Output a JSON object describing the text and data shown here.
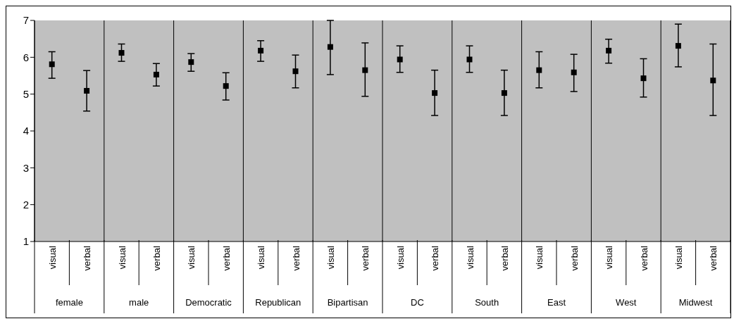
{
  "chart_data": {
    "type": "scatter",
    "categories": [
      "female",
      "male",
      "Democratic",
      "Republican",
      "Bipartisan",
      "DC",
      "South",
      "East",
      "West",
      "Midwest"
    ],
    "series": [
      {
        "name": "visual",
        "color": "#000000",
        "values": [
          5.81,
          6.12,
          5.87,
          6.18,
          6.28,
          5.94,
          5.94,
          5.65,
          6.18,
          6.31
        ],
        "errors": [
          [
            5.43,
            6.15
          ],
          [
            5.89,
            6.36
          ],
          [
            5.62,
            6.1
          ],
          [
            5.89,
            6.45
          ],
          [
            5.53,
            7.0
          ],
          [
            5.59,
            6.31
          ],
          [
            5.59,
            6.31
          ],
          [
            5.17,
            6.15
          ],
          [
            5.84,
            6.49
          ],
          [
            5.74,
            6.9
          ]
        ]
      },
      {
        "name": "verbal",
        "color": "#000000",
        "values": [
          5.09,
          5.53,
          5.22,
          5.62,
          5.65,
          5.03,
          5.03,
          5.59,
          5.43,
          5.37
        ],
        "errors": [
          [
            4.54,
            5.64
          ],
          [
            5.22,
            5.83
          ],
          [
            4.84,
            5.58
          ],
          [
            5.17,
            6.06
          ],
          [
            4.94,
            6.39
          ],
          [
            4.42,
            5.65
          ],
          [
            4.42,
            5.65
          ],
          [
            5.07,
            6.08
          ],
          [
            4.92,
            5.96
          ],
          [
            4.42,
            6.36
          ]
        ]
      }
    ],
    "ylim": [
      1,
      7
    ],
    "yticks": [
      1,
      2,
      3,
      4,
      5,
      6,
      7
    ],
    "grid": "x",
    "marker": "square"
  }
}
